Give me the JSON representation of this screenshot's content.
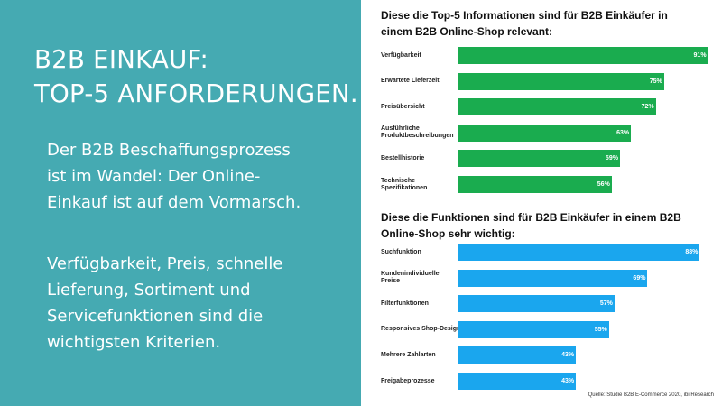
{
  "slide": {
    "title_lines": [
      "B2B EINKAUF:",
      "TOP-5 ANFORDERUNGEN."
    ],
    "paragraph1_lines": [
      "Der B2B Beschaffungsprozess",
      "ist im Wandel: Der Online-",
      "Einkauf ist auf dem Vormarsch."
    ],
    "paragraph2_lines": [
      "Verfügbarkeit, Preis, schnelle",
      "Lieferung, Sortiment und",
      "Servicefunktionen sind die",
      "wichtigsten Kriterien."
    ]
  },
  "colors": {
    "left_panel": "#45aab2",
    "chart1_bar": "#1aac4f",
    "chart2_bar": "#1aa6ee"
  },
  "chart_data": [
    {
      "type": "bar",
      "orientation": "horizontal",
      "title_lines": [
        "Diese die Top-5 Informationen sind für B2B Einkäufer in",
        "einem B2B Online-Shop relevant:"
      ],
      "categories": [
        [
          "Verfügbarkeit"
        ],
        [
          "Erwartete Lieferzeit"
        ],
        [
          "Preisübersicht"
        ],
        [
          "Ausführliche",
          "Produktbeschreibungen"
        ],
        [
          "Bestellhistorie"
        ],
        [
          "Technische",
          "Spezifikationen"
        ]
      ],
      "values": [
        91,
        75,
        72,
        63,
        59,
        56
      ],
      "value_labels": [
        "91%",
        "75%",
        "72%",
        "63%",
        "59%",
        "56%"
      ],
      "xlim": [
        0,
        100
      ],
      "grid": false
    },
    {
      "type": "bar",
      "orientation": "horizontal",
      "title_lines": [
        "Diese die Funktionen sind für B2B Einkäufer in einem B2B",
        "Online-Shop sehr wichtig:"
      ],
      "categories": [
        [
          "Suchfunktion"
        ],
        [
          "Kundenindividuelle",
          "Preise"
        ],
        [
          "Filterfunktionen"
        ],
        [
          "Responsives Shop-Design"
        ],
        [
          "Mehrere Zahlarten"
        ],
        [
          "Freigabeprozesse"
        ]
      ],
      "values": [
        88,
        69,
        57,
        55,
        43,
        43
      ],
      "value_labels": [
        "88%",
        "69%",
        "57%",
        "55%",
        "43%",
        "43%"
      ],
      "xlim": [
        0,
        100
      ],
      "grid": false
    }
  ],
  "source": "Quelle: Studie B2B E-Commerce 2020, ibi Research"
}
